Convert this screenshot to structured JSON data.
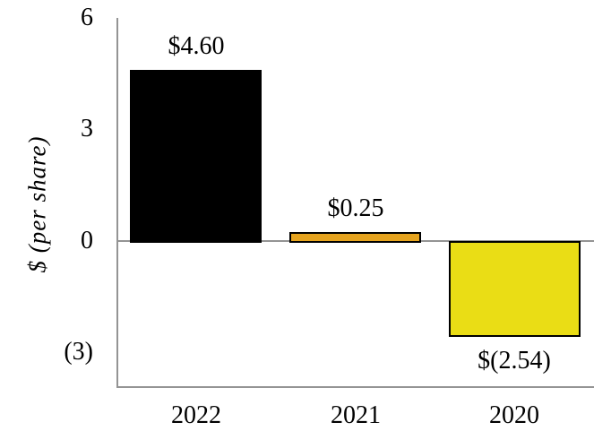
{
  "chart_data": {
    "type": "bar",
    "title": "",
    "ylabel": "$ (per share)",
    "xlabel": "",
    "categories": [
      "2022",
      "2021",
      "2020"
    ],
    "values": [
      4.6,
      0.25,
      -2.54
    ],
    "bar_labels": [
      "$4.60",
      "$0.25",
      "$(2.54)"
    ],
    "bar_colors": [
      "#000000",
      "#E6A41F",
      "#EADD15"
    ],
    "bar_border_color": "#000000",
    "yticks": [
      {
        "value": 6,
        "label": "6"
      },
      {
        "value": 3,
        "label": "3"
      },
      {
        "value": 0,
        "label": "0"
      },
      {
        "value": -3,
        "label": "(3)"
      }
    ],
    "ylim": [
      -3.93,
      6
    ],
    "grid": false,
    "legend": null,
    "axis_color": "#949494",
    "text_color": "#000000",
    "background": "#ffffff"
  }
}
